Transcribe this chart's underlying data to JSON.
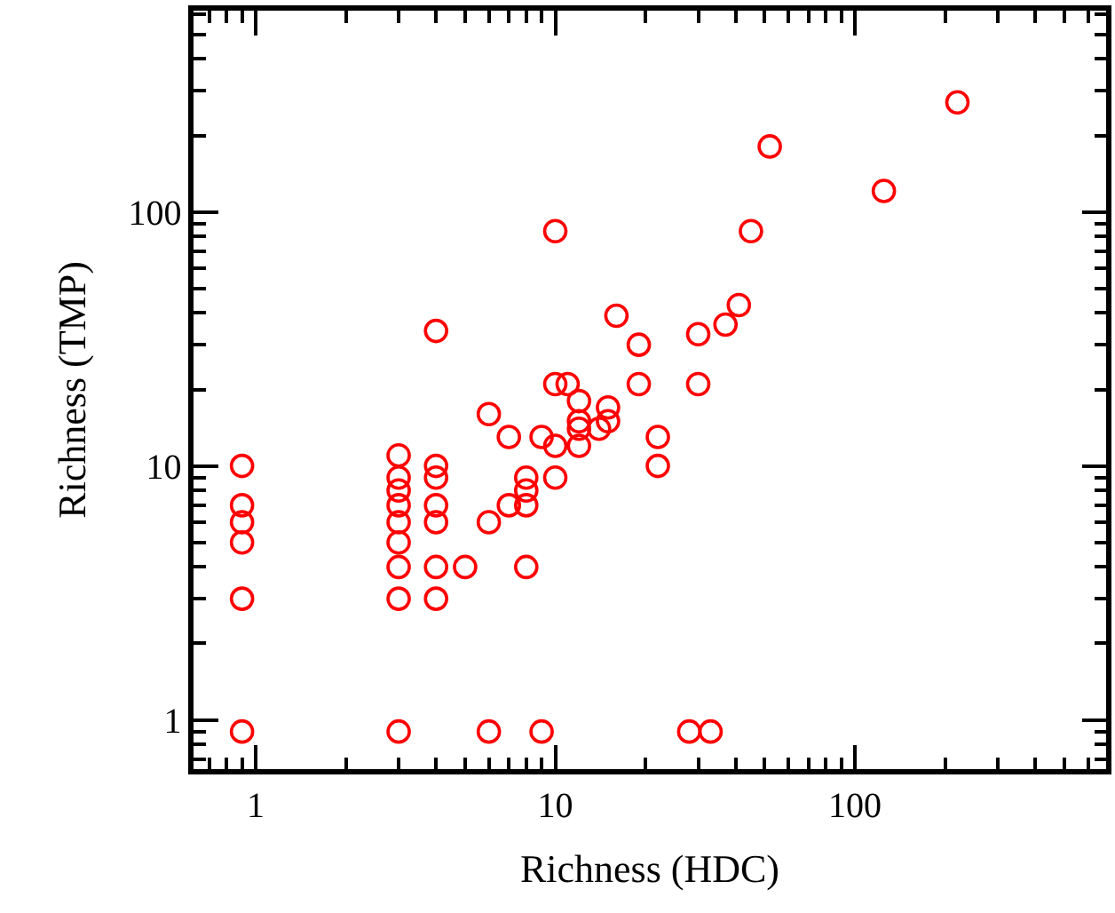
{
  "chart_data": {
    "type": "scatter",
    "xlabel": "Richness (HDC)",
    "ylabel": "Richness (TMP)",
    "log": "xy",
    "marker": "circle",
    "xlim": [
      0.62,
      690
    ],
    "ylim": [
      0.64,
      620
    ],
    "xticks": [
      {
        "value": 0.7,
        "label": null
      },
      {
        "value": 0.8,
        "label": null
      },
      {
        "value": 0.9,
        "label": null
      },
      1,
      {
        "value": 2,
        "label": null
      },
      {
        "value": 3,
        "label": null
      },
      {
        "value": 4,
        "label": null
      },
      {
        "value": 5,
        "label": null
      },
      {
        "value": 6,
        "label": null
      },
      {
        "value": 7,
        "label": null
      },
      {
        "value": 8,
        "label": null
      },
      {
        "value": 9,
        "label": null
      },
      10,
      {
        "value": 20,
        "label": null
      },
      {
        "value": 30,
        "label": null
      },
      {
        "value": 40,
        "label": null
      },
      {
        "value": 50,
        "label": null
      },
      {
        "value": 60,
        "label": null
      },
      {
        "value": 70,
        "label": null
      },
      {
        "value": 80,
        "label": null
      },
      {
        "value": 90,
        "label": null
      },
      100,
      {
        "value": 200,
        "label": null
      },
      {
        "value": 300,
        "label": null
      },
      {
        "value": 400,
        "label": null
      },
      {
        "value": 500,
        "label": null
      },
      {
        "value": 600,
        "label": null
      }
    ],
    "yticks": [
      {
        "value": 0.7,
        "label": null
      },
      {
        "value": 0.8,
        "label": null
      },
      {
        "value": 0.9,
        "label": null
      },
      1,
      {
        "value": 2,
        "label": null
      },
      {
        "value": 3,
        "label": null
      },
      {
        "value": 4,
        "label": null
      },
      {
        "value": 5,
        "label": null
      },
      {
        "value": 6,
        "label": null
      },
      {
        "value": 7,
        "label": null
      },
      {
        "value": 8,
        "label": null
      },
      {
        "value": 9,
        "label": null
      },
      10,
      {
        "value": 20,
        "label": null
      },
      {
        "value": 30,
        "label": null
      },
      {
        "value": 40,
        "label": null
      },
      {
        "value": 50,
        "label": null
      },
      {
        "value": 60,
        "label": null
      },
      {
        "value": 70,
        "label": null
      },
      {
        "value": 80,
        "label": null
      },
      {
        "value": 90,
        "label": null
      },
      100,
      {
        "value": 200,
        "label": null
      },
      {
        "value": 300,
        "label": null
      },
      {
        "value": 400,
        "label": null
      },
      {
        "value": 500,
        "label": null
      },
      {
        "value": 600,
        "label": null
      }
    ],
    "series": [
      {
        "color": "#ff0000",
        "x": [
          0.9,
          0.9,
          0.9,
          0.9,
          0.9,
          0.9,
          3,
          3,
          3,
          3,
          3,
          3,
          3,
          3,
          3,
          4,
          4,
          4,
          4,
          4,
          4,
          4,
          5,
          6,
          6,
          6,
          7,
          7,
          8,
          8,
          8,
          8,
          9,
          9,
          10,
          10,
          10,
          10,
          11,
          12,
          12,
          12,
          12,
          14,
          15,
          15,
          16,
          19,
          19,
          22,
          22,
          28,
          33,
          30,
          30,
          37,
          41,
          45,
          52,
          125,
          220
        ],
        "values": [
          10,
          7,
          6,
          5,
          3,
          0.9,
          11,
          9,
          8,
          7,
          6,
          5,
          4,
          3,
          0.9,
          34,
          10,
          9,
          7,
          6,
          4,
          3,
          4,
          16,
          6,
          0.9,
          13,
          7,
          9,
          8,
          7,
          4,
          13,
          0.9,
          84,
          21,
          12,
          9,
          21,
          18,
          15,
          14,
          12,
          14,
          17,
          15,
          39,
          30,
          21,
          13,
          10,
          0.9,
          0.9,
          33,
          21,
          36,
          43,
          84,
          181,
          121,
          270
        ]
      }
    ]
  }
}
